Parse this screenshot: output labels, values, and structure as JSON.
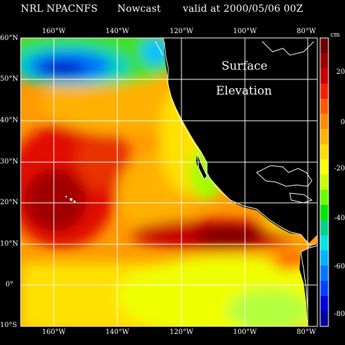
{
  "header": {
    "model": "NRL NPACNFS",
    "mode": "Nowcast",
    "valid": "valid at 2000/05/06 00Z"
  },
  "map": {
    "overlay_line1": "Surface",
    "overlay_line2": "Elevation",
    "lat_labels": [
      "60°N",
      "50°N",
      "40°N",
      "30°N",
      "20°N",
      "10°N",
      "0°",
      "10°S"
    ],
    "lon_labels_top": [
      "160°W",
      "140°W",
      "120°W",
      "100°W",
      "80°W"
    ],
    "lon_labels_bottom": [
      "160°W",
      "140°W",
      "120°W",
      "100°W",
      "80°W"
    ]
  },
  "colorbar": {
    "unit": "cm",
    "ticks": [
      "20",
      "0",
      "-20",
      "-40",
      "-60",
      "-80"
    ],
    "colors": [
      "#6a0000",
      "#9a0000",
      "#c80000",
      "#f02000",
      "#ff5a00",
      "#ff8c00",
      "#ffb400",
      "#ffdc00",
      "#ffff00",
      "#c8ff00",
      "#6aff00",
      "#00e600",
      "#00d28c",
      "#00e6e6",
      "#00b4ff",
      "#0078ff",
      "#0040ff",
      "#0000dc",
      "#00009a"
    ]
  }
}
